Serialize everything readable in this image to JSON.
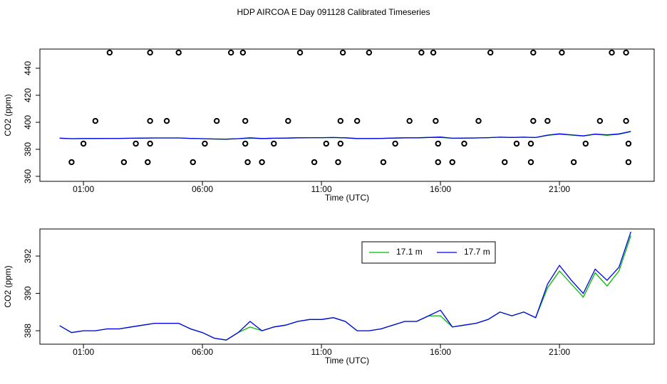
{
  "chart_data": [
    {
      "type": "scatter",
      "title": "HDP AIRCOA E  Day 091128  Calibrated Timeseries",
      "x_label": "Time (UTC)",
      "y_label": "CO2 (ppm)",
      "xlim": [
        -0.83,
        24.98
      ],
      "ylim": [
        356.3,
        454.2
      ],
      "xticks": [
        {
          "value": 1,
          "label": "01:00"
        },
        {
          "value": 6,
          "label": "06:00"
        },
        {
          "value": 11,
          "label": "11:00"
        },
        {
          "value": 16,
          "label": "16:00"
        },
        {
          "value": 21,
          "label": "21:00"
        }
      ],
      "yticks": [
        360,
        380,
        400,
        420,
        440
      ],
      "points": {
        "color": "#000000",
        "x": [
          2.1,
          3.8,
          5.0,
          7.2,
          7.7,
          10.1,
          11.9,
          13.0,
          15.2,
          15.7,
          18.1,
          19.9,
          21.1,
          23.2,
          23.8,
          1.5,
          3.8,
          4.5,
          6.6,
          7.8,
          9.6,
          11.8,
          12.5,
          14.7,
          15.8,
          17.6,
          19.9,
          20.5,
          22.7,
          23.8,
          1.0,
          3.2,
          3.8,
          6.1,
          7.8,
          9.0,
          11.2,
          11.8,
          14.1,
          15.9,
          17.0,
          19.2,
          19.8,
          22.1,
          23.9,
          0.5,
          2.7,
          3.7,
          5.6,
          7.9,
          8.5,
          10.7,
          11.7,
          13.6,
          15.9,
          16.5,
          18.7,
          19.8,
          21.6,
          23.9
        ],
        "y": [
          451.6,
          451.6,
          451.6,
          451.6,
          451.6,
          451.6,
          451.6,
          451.6,
          451.6,
          451.6,
          451.6,
          451.6,
          451.6,
          451.6,
          451.6,
          401,
          401,
          401,
          401,
          401,
          401,
          401,
          401,
          401,
          401,
          401,
          401,
          401,
          401,
          401,
          384.2,
          384.2,
          384.2,
          384.2,
          384.2,
          384.2,
          384.2,
          384.2,
          384.2,
          384.2,
          384.2,
          384.2,
          384.2,
          384.2,
          384.2,
          370.5,
          370.5,
          370.5,
          370.5,
          370.5,
          370.5,
          370.5,
          370.5,
          370.5,
          370.5,
          370.5,
          370.5,
          370.5,
          370.5,
          370.5
        ]
      },
      "x": [
        0,
        0.5,
        1,
        1.5,
        2,
        2.5,
        3,
        3.5,
        4,
        4.5,
        5,
        5.5,
        6,
        6.5,
        7,
        7.5,
        8,
        8.5,
        9,
        9.5,
        10,
        10.5,
        11,
        11.5,
        12,
        12.5,
        13,
        13.5,
        14,
        14.5,
        15,
        15.5,
        16,
        16.5,
        17,
        17.5,
        18,
        18.5,
        19,
        19.5,
        20,
        20.5,
        21,
        21.5,
        22,
        22.5,
        23,
        23.5,
        24
      ],
      "series": [
        {
          "color": "#00bb00",
          "values": [
            388.27,
            387.9,
            388.0,
            388.0,
            388.1,
            388.1,
            388.2,
            388.3,
            388.4,
            388.4,
            388.4,
            388.1,
            387.9,
            387.6,
            387.5,
            387.9,
            388.2,
            388.0,
            388.2,
            388.3,
            388.5,
            388.6,
            388.6,
            388.7,
            388.5,
            388.0,
            388.0,
            388.1,
            388.3,
            388.5,
            388.5,
            388.8,
            388.8,
            388.2,
            388.3,
            388.4,
            388.6,
            389.0,
            388.8,
            389.0,
            388.7,
            390.3,
            391.2,
            390.5,
            389.8,
            391.1,
            390.4,
            391.2,
            393.1
          ]
        },
        {
          "color": "#0000ee",
          "values": [
            388.27,
            387.9,
            388.0,
            388.0,
            388.1,
            388.1,
            388.2,
            388.3,
            388.4,
            388.4,
            388.4,
            388.1,
            387.9,
            387.6,
            387.5,
            387.9,
            388.5,
            388.0,
            388.2,
            388.3,
            388.5,
            388.6,
            388.6,
            388.7,
            388.5,
            388.0,
            388.0,
            388.1,
            388.3,
            388.5,
            388.5,
            388.8,
            389.1,
            388.2,
            388.3,
            388.4,
            388.6,
            389.0,
            388.8,
            389.0,
            388.7,
            390.5,
            391.5,
            390.7,
            390.0,
            391.3,
            390.7,
            391.4,
            393.3
          ]
        }
      ]
    },
    {
      "type": "line",
      "x_label": "Time (UTC)",
      "y_label": "CO2 (ppm)",
      "xlim": [
        -0.83,
        24.98
      ],
      "ylim": [
        387.28,
        393.45
      ],
      "xticks": [
        {
          "value": 1,
          "label": "01:00"
        },
        {
          "value": 6,
          "label": "06:00"
        },
        {
          "value": 11,
          "label": "11:00"
        },
        {
          "value": 16,
          "label": "16:00"
        },
        {
          "value": 21,
          "label": "21:00"
        }
      ],
      "yticks": [
        388,
        390,
        392
      ],
      "legend": "top",
      "x": [
        0,
        0.5,
        1,
        1.5,
        2,
        2.5,
        3,
        3.5,
        4,
        4.5,
        5,
        5.5,
        6,
        6.5,
        7,
        7.5,
        8,
        8.5,
        9,
        9.5,
        10,
        10.5,
        11,
        11.5,
        12,
        12.5,
        13,
        13.5,
        14,
        14.5,
        15,
        15.5,
        16,
        16.5,
        17,
        17.5,
        18,
        18.5,
        19,
        19.5,
        20,
        20.5,
        21,
        21.5,
        22,
        22.5,
        23,
        23.5,
        24
      ],
      "series": [
        {
          "name": "17.1 m",
          "color": "#00bb00",
          "values": [
            388.27,
            387.9,
            388.0,
            388.0,
            388.1,
            388.1,
            388.2,
            388.3,
            388.4,
            388.4,
            388.4,
            388.1,
            387.9,
            387.6,
            387.5,
            387.9,
            388.2,
            388.0,
            388.2,
            388.3,
            388.5,
            388.6,
            388.6,
            388.7,
            388.5,
            388.0,
            388.0,
            388.1,
            388.3,
            388.5,
            388.5,
            388.8,
            388.8,
            388.2,
            388.3,
            388.4,
            388.6,
            389.0,
            388.8,
            389.0,
            388.7,
            390.3,
            391.2,
            390.5,
            389.8,
            391.1,
            390.4,
            391.2,
            393.1
          ]
        },
        {
          "name": "17.7 m",
          "color": "#0000ee",
          "values": [
            388.27,
            387.9,
            388.0,
            388.0,
            388.1,
            388.1,
            388.2,
            388.3,
            388.4,
            388.4,
            388.4,
            388.1,
            387.9,
            387.6,
            387.5,
            387.9,
            388.5,
            388.0,
            388.2,
            388.3,
            388.5,
            388.6,
            388.6,
            388.7,
            388.5,
            388.0,
            388.0,
            388.1,
            388.3,
            388.5,
            388.5,
            388.8,
            389.1,
            388.2,
            388.3,
            388.4,
            388.6,
            389.0,
            388.8,
            389.0,
            388.7,
            390.5,
            391.5,
            390.7,
            390.0,
            391.3,
            390.7,
            391.4,
            393.3
          ]
        }
      ]
    }
  ]
}
